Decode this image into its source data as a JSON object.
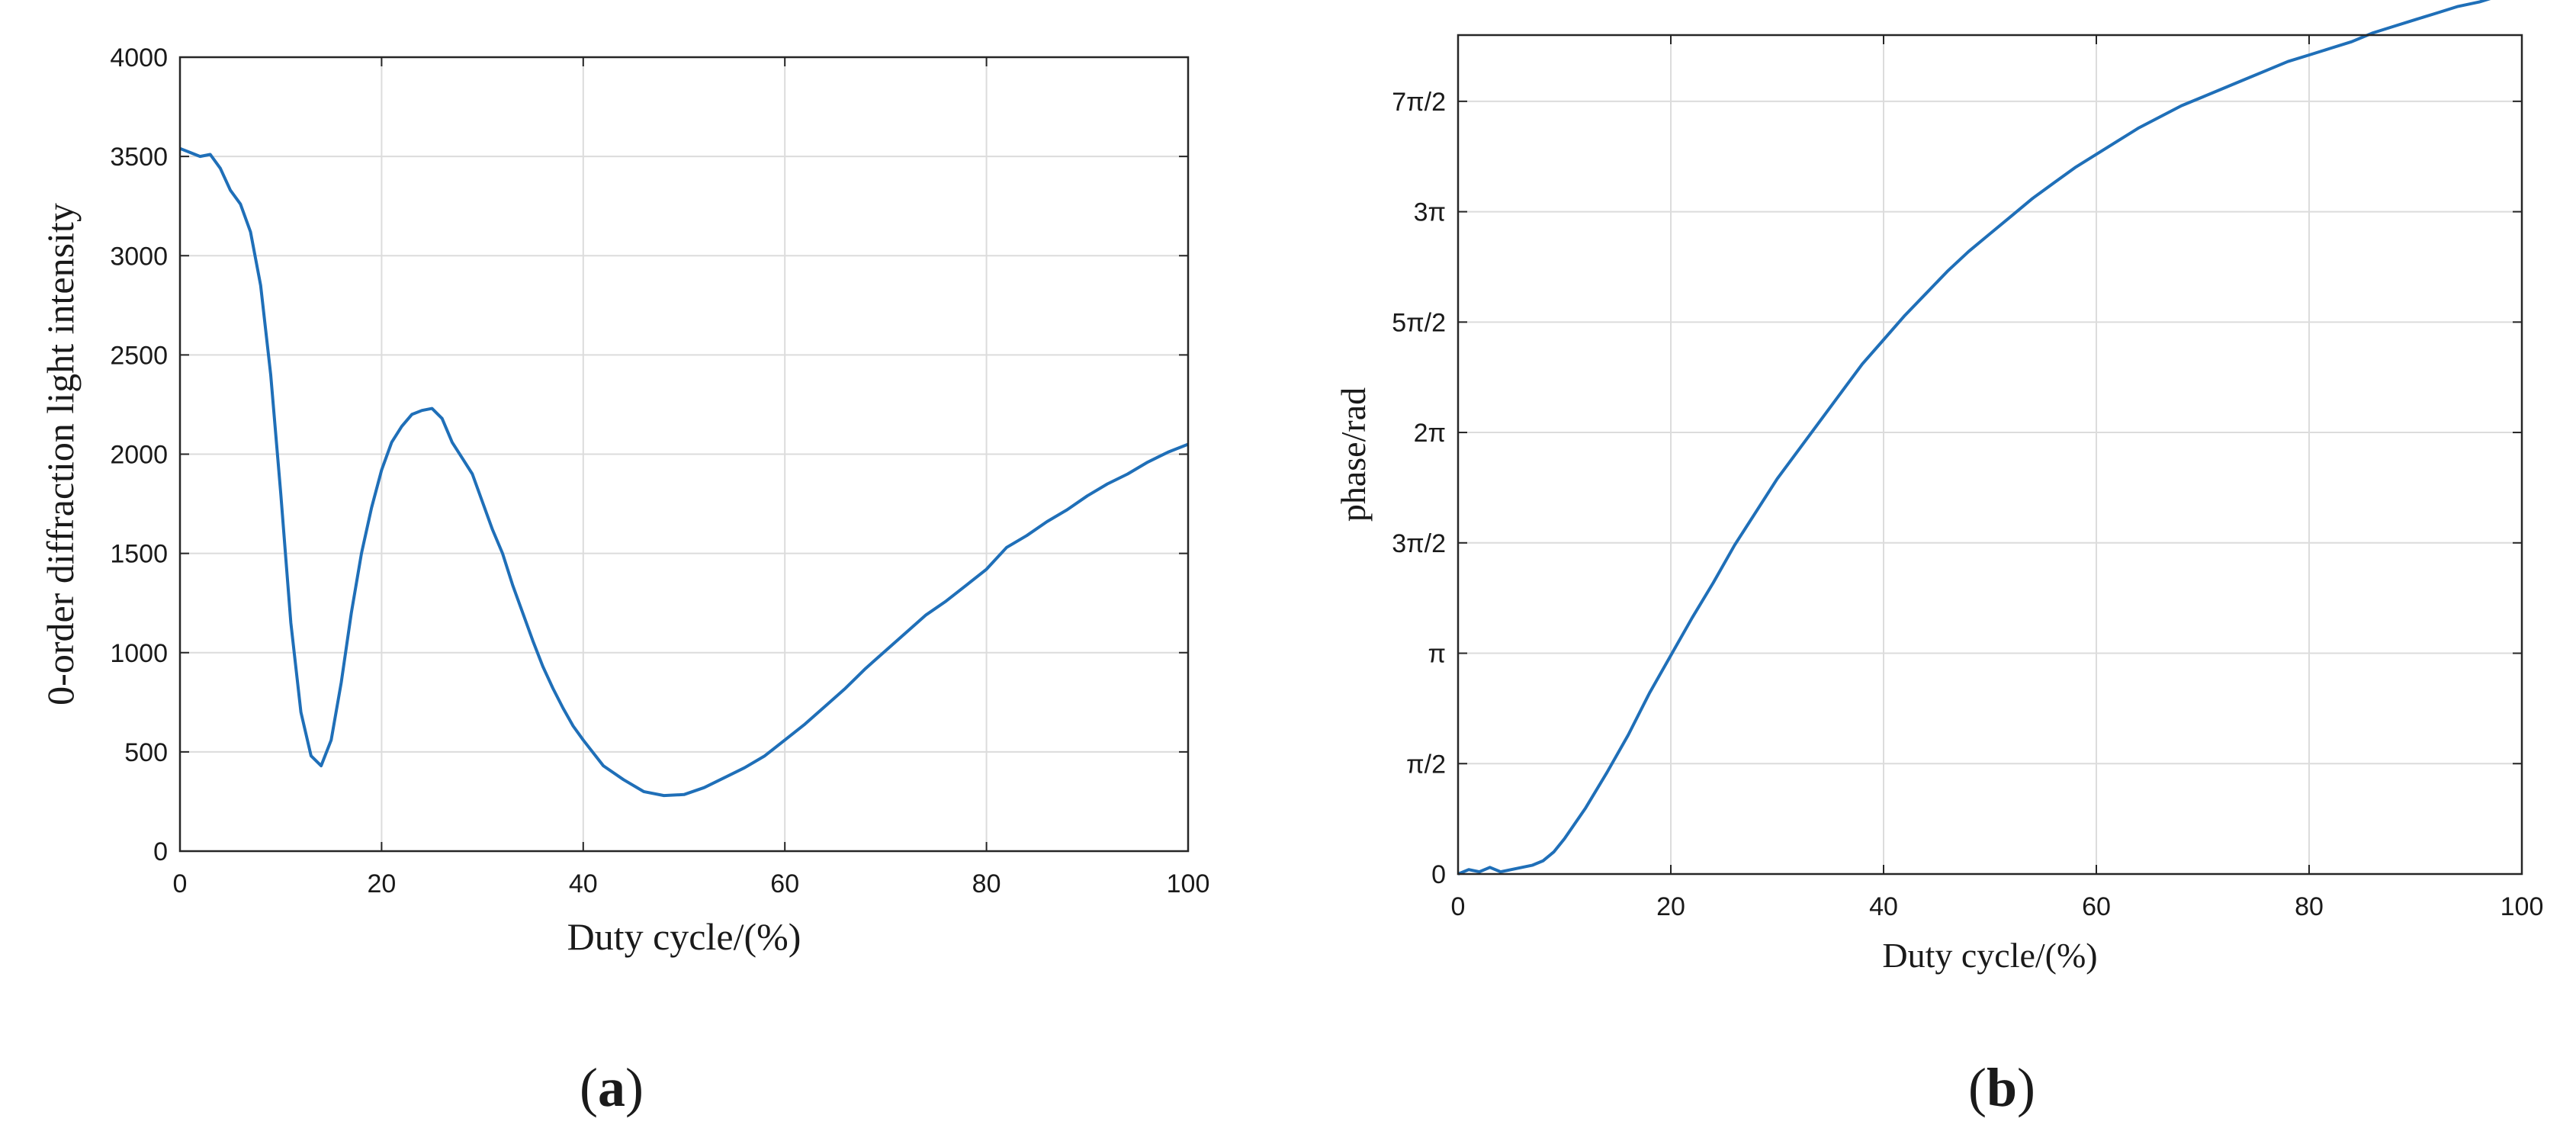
{
  "chart_data": [
    {
      "panel_label": "(a)",
      "type": "line",
      "title": "",
      "xlabel": "Duty cycle/(%)",
      "ylabel": "0-order diffraction light intensity",
      "xlim": [
        0,
        100
      ],
      "ylim": [
        0,
        4000
      ],
      "xticks": [
        0,
        20,
        40,
        60,
        80,
        100
      ],
      "xtick_labels": [
        "0",
        "20",
        "40",
        "60",
        "80",
        "100"
      ],
      "yticks": [
        0,
        500,
        1000,
        1500,
        2000,
        2500,
        3000,
        3500,
        4000
      ],
      "ytick_labels": [
        "0",
        "500",
        "1000",
        "1500",
        "2000",
        "2500",
        "3000",
        "3500",
        "4000"
      ],
      "grid": true,
      "series": [
        {
          "color": "#1f6fb8",
          "x": [
            0,
            1,
            2,
            3,
            4,
            5,
            6,
            7,
            8,
            9,
            10,
            11,
            12,
            13,
            14,
            15,
            16,
            17,
            18,
            19,
            20,
            21,
            22,
            23,
            24,
            25,
            26,
            27,
            28,
            29,
            30,
            31,
            32,
            33,
            34,
            35,
            36,
            37,
            38,
            39,
            40,
            42,
            44,
            46,
            48,
            50,
            52,
            54,
            56,
            58,
            60,
            62,
            64,
            66,
            68,
            70,
            72,
            74,
            76,
            78,
            80,
            82,
            84,
            86,
            88,
            90,
            92,
            94,
            96,
            98,
            100
          ],
          "y": [
            3540,
            3520,
            3500,
            3510,
            3440,
            3330,
            3260,
            3120,
            2850,
            2400,
            1800,
            1150,
            700,
            480,
            430,
            560,
            850,
            1200,
            1500,
            1730,
            1920,
            2060,
            2140,
            2200,
            2220,
            2230,
            2180,
            2060,
            1980,
            1900,
            1760,
            1620,
            1500,
            1340,
            1200,
            1060,
            930,
            820,
            720,
            630,
            560,
            430,
            360,
            300,
            280,
            285,
            320,
            370,
            420,
            480,
            560,
            640,
            730,
            820,
            920,
            1010,
            1100,
            1190,
            1260,
            1340,
            1420,
            1530,
            1590,
            1660,
            1720,
            1790,
            1850,
            1900,
            1960,
            2010,
            2050
          ]
        }
      ]
    },
    {
      "panel_label": "(b)",
      "type": "line",
      "title": "",
      "xlabel": "Duty cycle/(%)",
      "ylabel": "phase/rad",
      "xlim": [
        0,
        100
      ],
      "ylim": [
        0,
        3.8
      ],
      "y_units": "multiples of π",
      "xticks": [
        0,
        20,
        40,
        60,
        80,
        100
      ],
      "xtick_labels": [
        "0",
        "20",
        "40",
        "60",
        "80",
        "100"
      ],
      "yticks": [
        0,
        0.5,
        1,
        1.5,
        2,
        2.5,
        3,
        3.5
      ],
      "ytick_labels": [
        "0",
        "π/2",
        "π",
        "3π/2",
        "2π",
        "5π/2",
        "3π",
        "7π/2"
      ],
      "grid": true,
      "series": [
        {
          "color": "#1f6fb8",
          "x": [
            0,
            1,
            2,
            3,
            4,
            5,
            6,
            7,
            8,
            9,
            10,
            12,
            14,
            16,
            18,
            20,
            22,
            24,
            26,
            28,
            30,
            32,
            34,
            36,
            38,
            40,
            42,
            44,
            46,
            48,
            50,
            52,
            54,
            56,
            58,
            60,
            62,
            64,
            66,
            68,
            70,
            72,
            74,
            76,
            78,
            80,
            82,
            84,
            86,
            88,
            90,
            92,
            94,
            96,
            98,
            100
          ],
          "y": [
            0,
            0.02,
            0.01,
            0.03,
            0.01,
            0.02,
            0.03,
            0.04,
            0.06,
            0.1,
            0.16,
            0.3,
            0.46,
            0.63,
            0.82,
            0.99,
            1.16,
            1.32,
            1.49,
            1.64,
            1.79,
            1.92,
            2.05,
            2.18,
            2.31,
            2.42,
            2.53,
            2.63,
            2.73,
            2.82,
            2.9,
            2.98,
            3.06,
            3.13,
            3.2,
            3.26,
            3.32,
            3.38,
            3.43,
            3.48,
            3.52,
            3.56,
            3.6,
            3.64,
            3.68,
            3.71,
            3.74,
            3.77,
            3.81,
            3.84,
            3.87,
            3.9,
            3.93,
            3.95,
            3.98,
            4.0
          ]
        }
      ]
    }
  ]
}
